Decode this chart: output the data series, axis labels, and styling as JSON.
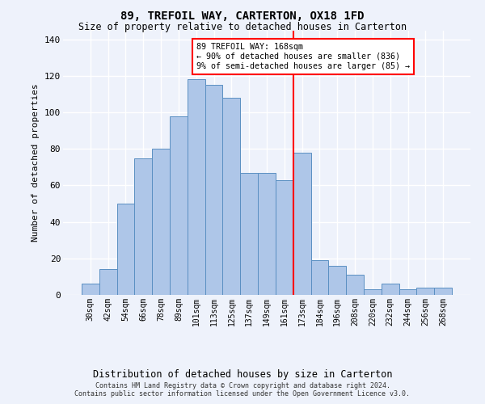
{
  "title": "89, TREFOIL WAY, CARTERTON, OX18 1FD",
  "subtitle": "Size of property relative to detached houses in Carterton",
  "xlabel": "Distribution of detached houses by size in Carterton",
  "ylabel": "Number of detached properties",
  "bar_labels": [
    "30sqm",
    "42sqm",
    "54sqm",
    "66sqm",
    "78sqm",
    "89sqm",
    "101sqm",
    "113sqm",
    "125sqm",
    "137sqm",
    "149sqm",
    "161sqm",
    "173sqm",
    "184sqm",
    "196sqm",
    "208sqm",
    "220sqm",
    "232sqm",
    "244sqm",
    "256sqm",
    "268sqm"
  ],
  "bar_values": [
    6,
    14,
    50,
    75,
    80,
    98,
    118,
    115,
    108,
    67,
    67,
    63,
    78,
    19,
    16,
    11,
    3,
    6,
    3,
    4,
    4
  ],
  "bar_color": "#aec6e8",
  "bar_edge_color": "#5a8fc2",
  "vline_color": "red",
  "ylim": [
    0,
    145
  ],
  "yticks": [
    0,
    20,
    40,
    60,
    80,
    100,
    120,
    140
  ],
  "annotation_text": "89 TREFOIL WAY: 168sqm\n← 90% of detached houses are smaller (836)\n9% of semi-detached houses are larger (85) →",
  "annotation_box_color": "#ffffff",
  "annotation_box_edge": "red",
  "footer_text": "Contains HM Land Registry data © Crown copyright and database right 2024.\nContains public sector information licensed under the Open Government Licence v3.0.",
  "bg_color": "#eef2fb",
  "grid_color": "#ffffff"
}
